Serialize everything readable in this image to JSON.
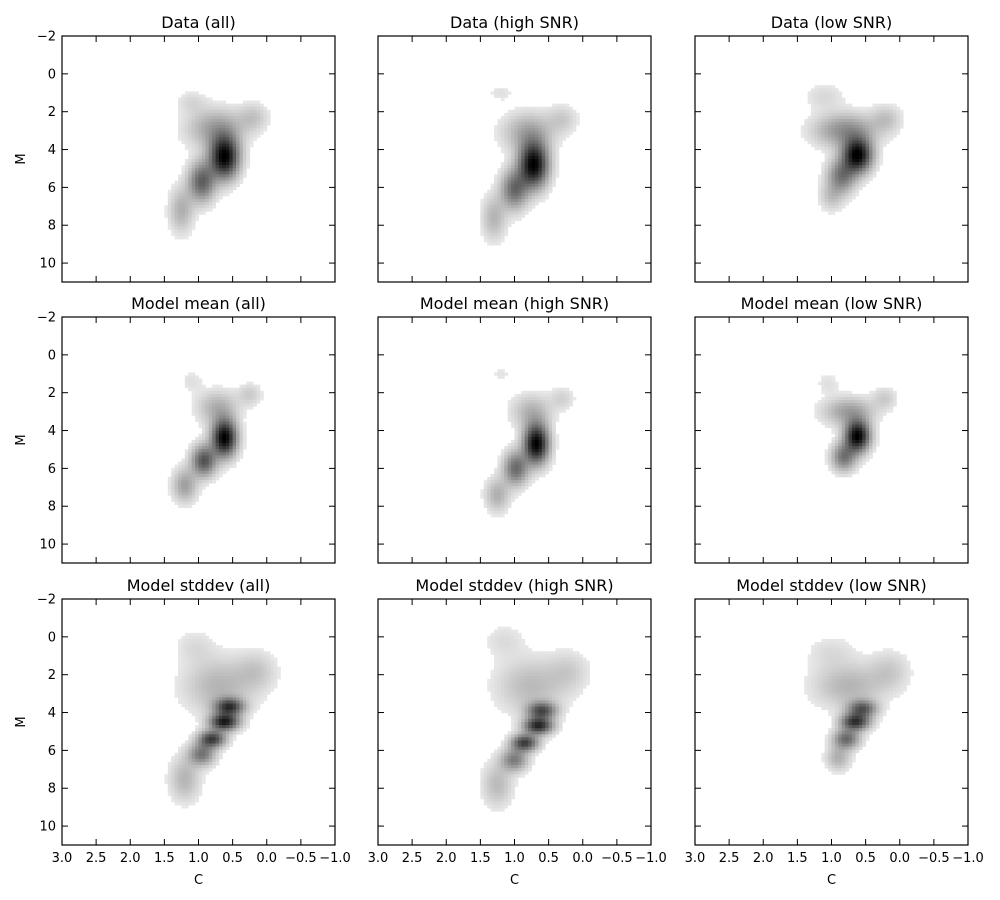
{
  "chart_data": {
    "type": "heatmap",
    "layout": "3x3 grid",
    "xlim": [
      3.0,
      -1.0
    ],
    "ylim": [
      11.0,
      -2.0
    ],
    "xticks": [
      3.0,
      2.5,
      2.0,
      1.5,
      1.0,
      0.5,
      0.0,
      -0.5,
      -1.0
    ],
    "xtick_labels": [
      "3.0",
      "2.5",
      "2.0",
      "1.5",
      "1.0",
      "0.5",
      "0.0",
      "−0.5",
      "−1.0"
    ],
    "yticks": [
      -2,
      0,
      2,
      4,
      6,
      8,
      10
    ],
    "ytick_labels": [
      "−2",
      "0",
      "2",
      "4",
      "6",
      "8",
      "10"
    ],
    "xlabel": "C",
    "ylabel": "M",
    "colormap": "greys",
    "grid": false,
    "panels": [
      {
        "title": "Data (all)",
        "row": 0,
        "col": 0,
        "peak": [
          0.62,
          4.4
        ],
        "blobs": [
          {
            "cx": 0.62,
            "cy": 4.4,
            "sx": 0.14,
            "sy": 0.75,
            "w": 1.0
          },
          {
            "cx": 0.95,
            "cy": 5.7,
            "sx": 0.13,
            "sy": 0.7,
            "w": 0.55
          },
          {
            "cx": 1.25,
            "cy": 7.2,
            "sx": 0.12,
            "sy": 0.8,
            "w": 0.22
          },
          {
            "cx": 0.75,
            "cy": 2.9,
            "sx": 0.28,
            "sy": 0.7,
            "w": 0.28
          },
          {
            "cx": 0.2,
            "cy": 2.3,
            "sx": 0.15,
            "sy": 0.5,
            "w": 0.14
          },
          {
            "cx": 1.1,
            "cy": 1.5,
            "sx": 0.15,
            "sy": 0.4,
            "w": 0.08
          }
        ]
      },
      {
        "title": "Data (high SNR)",
        "row": 0,
        "col": 1,
        "peak": [
          0.72,
          4.8
        ],
        "blobs": [
          {
            "cx": 0.72,
            "cy": 4.8,
            "sx": 0.14,
            "sy": 0.8,
            "w": 1.0
          },
          {
            "cx": 1.0,
            "cy": 6.1,
            "sx": 0.13,
            "sy": 0.7,
            "w": 0.5
          },
          {
            "cx": 1.3,
            "cy": 7.6,
            "sx": 0.12,
            "sy": 0.8,
            "w": 0.2
          },
          {
            "cx": 0.8,
            "cy": 3.1,
            "sx": 0.25,
            "sy": 0.7,
            "w": 0.25
          },
          {
            "cx": 0.3,
            "cy": 2.4,
            "sx": 0.15,
            "sy": 0.5,
            "w": 0.12
          },
          {
            "cx": 1.2,
            "cy": 1.0,
            "sx": 0.12,
            "sy": 0.3,
            "w": 0.06
          }
        ]
      },
      {
        "title": "Data (low SNR)",
        "row": 0,
        "col": 2,
        "peak": [
          0.62,
          4.3
        ],
        "blobs": [
          {
            "cx": 0.62,
            "cy": 4.3,
            "sx": 0.14,
            "sy": 0.6,
            "w": 1.0
          },
          {
            "cx": 0.85,
            "cy": 5.4,
            "sx": 0.14,
            "sy": 0.6,
            "w": 0.45
          },
          {
            "cx": 0.8,
            "cy": 3.0,
            "sx": 0.3,
            "sy": 0.6,
            "w": 0.35
          },
          {
            "cx": 1.0,
            "cy": 6.5,
            "sx": 0.12,
            "sy": 0.5,
            "w": 0.15
          },
          {
            "cx": 0.2,
            "cy": 2.4,
            "sx": 0.15,
            "sy": 0.5,
            "w": 0.15
          },
          {
            "cx": 1.1,
            "cy": 1.2,
            "sx": 0.2,
            "sy": 0.5,
            "w": 0.08
          }
        ]
      },
      {
        "title": "Model mean (all)",
        "row": 1,
        "col": 0,
        "peak": [
          0.62,
          4.4
        ],
        "blobs": [
          {
            "cx": 0.62,
            "cy": 4.4,
            "sx": 0.12,
            "sy": 0.65,
            "w": 1.0
          },
          {
            "cx": 0.92,
            "cy": 5.6,
            "sx": 0.12,
            "sy": 0.55,
            "w": 0.6
          },
          {
            "cx": 1.2,
            "cy": 6.9,
            "sx": 0.12,
            "sy": 0.6,
            "w": 0.28
          },
          {
            "cx": 0.72,
            "cy": 2.8,
            "sx": 0.2,
            "sy": 0.6,
            "w": 0.22
          },
          {
            "cx": 0.25,
            "cy": 2.1,
            "sx": 0.12,
            "sy": 0.4,
            "w": 0.12
          },
          {
            "cx": 1.1,
            "cy": 1.4,
            "sx": 0.12,
            "sy": 0.4,
            "w": 0.06
          }
        ]
      },
      {
        "title": "Model mean (high SNR)",
        "row": 1,
        "col": 1,
        "peak": [
          0.68,
          4.7
        ],
        "blobs": [
          {
            "cx": 0.68,
            "cy": 4.7,
            "sx": 0.12,
            "sy": 0.7,
            "w": 1.0
          },
          {
            "cx": 0.98,
            "cy": 6.0,
            "sx": 0.12,
            "sy": 0.6,
            "w": 0.5
          },
          {
            "cx": 1.25,
            "cy": 7.4,
            "sx": 0.12,
            "sy": 0.6,
            "w": 0.22
          },
          {
            "cx": 0.75,
            "cy": 3.0,
            "sx": 0.2,
            "sy": 0.6,
            "w": 0.2
          },
          {
            "cx": 0.3,
            "cy": 2.3,
            "sx": 0.12,
            "sy": 0.4,
            "w": 0.1
          },
          {
            "cx": 1.2,
            "cy": 1.0,
            "sx": 0.1,
            "sy": 0.3,
            "w": 0.05
          }
        ]
      },
      {
        "title": "Model mean (low SNR)",
        "row": 1,
        "col": 2,
        "peak": [
          0.62,
          4.3
        ],
        "blobs": [
          {
            "cx": 0.62,
            "cy": 4.3,
            "sx": 0.12,
            "sy": 0.55,
            "w": 1.0
          },
          {
            "cx": 0.82,
            "cy": 5.4,
            "sx": 0.12,
            "sy": 0.5,
            "w": 0.45
          },
          {
            "cx": 0.75,
            "cy": 3.0,
            "sx": 0.25,
            "sy": 0.5,
            "w": 0.28
          },
          {
            "cx": 0.22,
            "cy": 2.3,
            "sx": 0.12,
            "sy": 0.4,
            "w": 0.12
          },
          {
            "cx": 1.05,
            "cy": 1.5,
            "sx": 0.12,
            "sy": 0.4,
            "w": 0.06
          }
        ]
      },
      {
        "title": "Model stddev (all)",
        "row": 2,
        "col": 0,
        "peak": [
          0.62,
          4.4
        ],
        "blobs": [
          {
            "cx": 0.55,
            "cy": 3.7,
            "sx": 0.14,
            "sy": 0.3,
            "w": 0.7
          },
          {
            "cx": 0.62,
            "cy": 4.5,
            "sx": 0.14,
            "sy": 0.3,
            "w": 0.85
          },
          {
            "cx": 0.8,
            "cy": 5.4,
            "sx": 0.13,
            "sy": 0.3,
            "w": 0.7
          },
          {
            "cx": 0.95,
            "cy": 6.2,
            "sx": 0.13,
            "sy": 0.4,
            "w": 0.45
          },
          {
            "cx": 1.2,
            "cy": 7.5,
            "sx": 0.15,
            "sy": 0.8,
            "w": 0.2
          },
          {
            "cx": 0.7,
            "cy": 2.6,
            "sx": 0.35,
            "sy": 1.0,
            "w": 0.2
          },
          {
            "cx": 0.15,
            "cy": 1.8,
            "sx": 0.2,
            "sy": 0.7,
            "w": 0.12
          },
          {
            "cx": 1.05,
            "cy": 0.5,
            "sx": 0.2,
            "sy": 0.6,
            "w": 0.07
          }
        ]
      },
      {
        "title": "Model stddev (high SNR)",
        "row": 2,
        "col": 1,
        "peak": [
          0.65,
          4.7
        ],
        "blobs": [
          {
            "cx": 0.6,
            "cy": 3.9,
            "sx": 0.14,
            "sy": 0.3,
            "w": 0.6
          },
          {
            "cx": 0.65,
            "cy": 4.7,
            "sx": 0.14,
            "sy": 0.3,
            "w": 0.8
          },
          {
            "cx": 0.85,
            "cy": 5.6,
            "sx": 0.13,
            "sy": 0.3,
            "w": 0.7
          },
          {
            "cx": 1.0,
            "cy": 6.5,
            "sx": 0.13,
            "sy": 0.4,
            "w": 0.42
          },
          {
            "cx": 1.25,
            "cy": 7.8,
            "sx": 0.15,
            "sy": 0.8,
            "w": 0.18
          },
          {
            "cx": 0.75,
            "cy": 2.6,
            "sx": 0.35,
            "sy": 1.0,
            "w": 0.18
          },
          {
            "cx": 0.2,
            "cy": 1.8,
            "sx": 0.2,
            "sy": 0.7,
            "w": 0.1
          },
          {
            "cx": 1.15,
            "cy": 0.2,
            "sx": 0.2,
            "sy": 0.6,
            "w": 0.07
          }
        ]
      },
      {
        "title": "Model stddev (low SNR)",
        "row": 2,
        "col": 2,
        "peak": [
          0.62,
          4.4
        ],
        "blobs": [
          {
            "cx": 0.55,
            "cy": 3.8,
            "sx": 0.14,
            "sy": 0.3,
            "w": 0.55
          },
          {
            "cx": 0.65,
            "cy": 4.5,
            "sx": 0.14,
            "sy": 0.3,
            "w": 0.75
          },
          {
            "cx": 0.78,
            "cy": 5.4,
            "sx": 0.13,
            "sy": 0.35,
            "w": 0.5
          },
          {
            "cx": 0.9,
            "cy": 6.4,
            "sx": 0.12,
            "sy": 0.45,
            "w": 0.22
          },
          {
            "cx": 0.75,
            "cy": 2.6,
            "sx": 0.35,
            "sy": 0.8,
            "w": 0.2
          },
          {
            "cx": 0.15,
            "cy": 1.8,
            "sx": 0.2,
            "sy": 0.7,
            "w": 0.12
          },
          {
            "cx": 1.0,
            "cy": 0.8,
            "sx": 0.25,
            "sy": 0.6,
            "w": 0.07
          }
        ]
      }
    ]
  }
}
